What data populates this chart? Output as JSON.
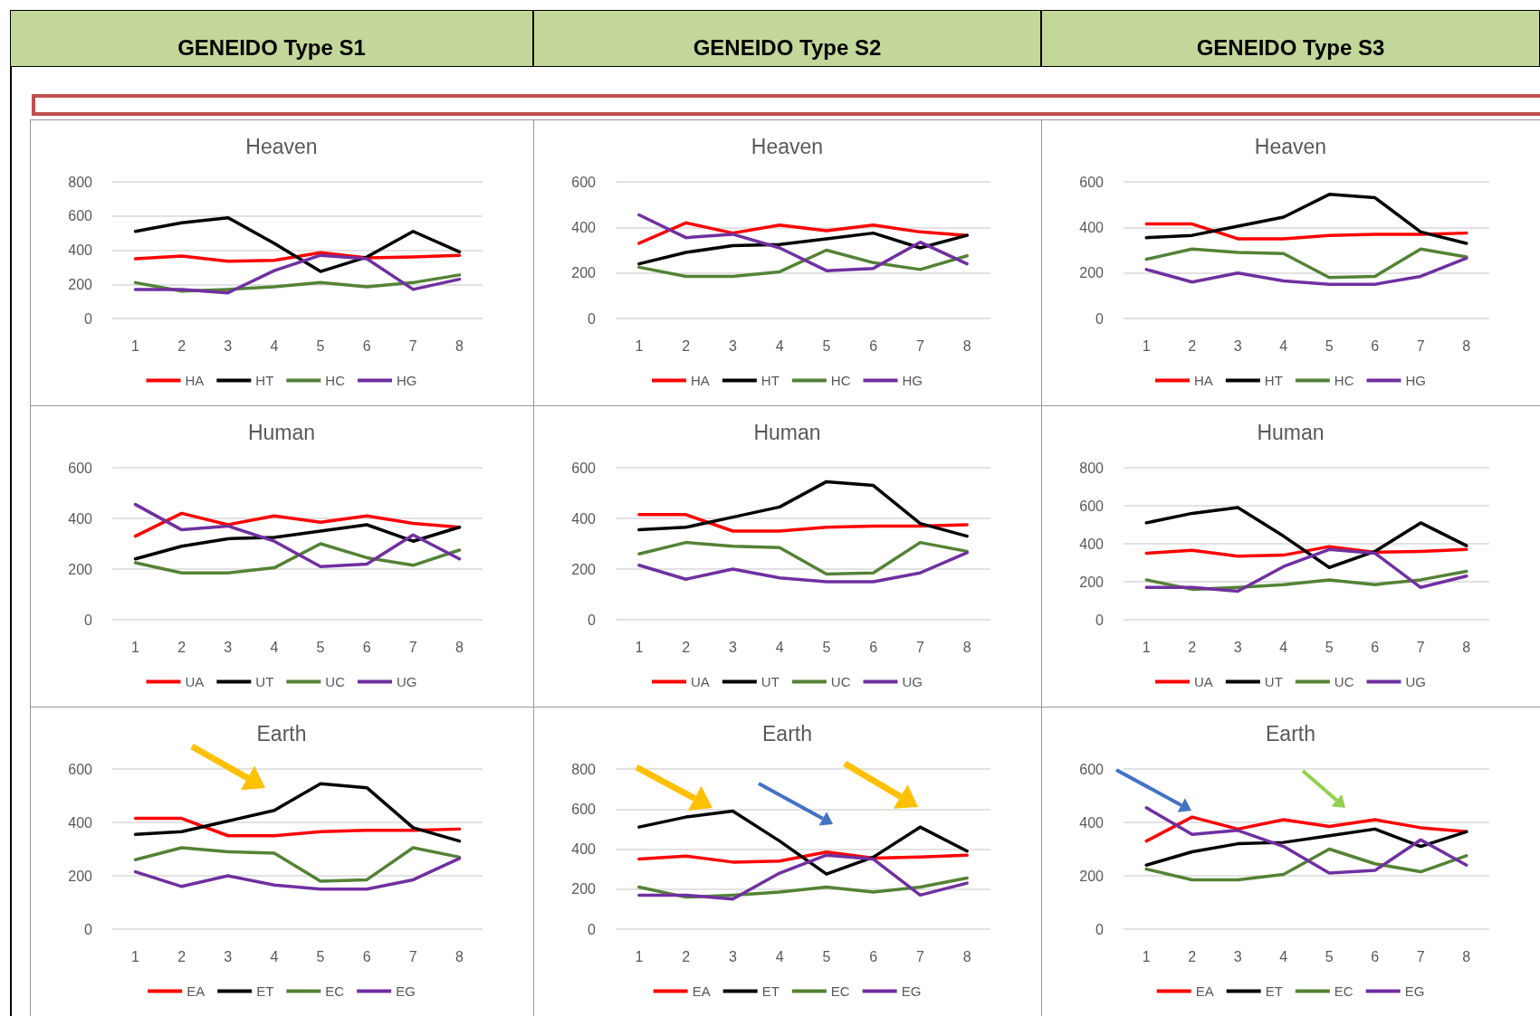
{
  "chart_data": [
    {
      "type": "line",
      "subtitle": "GENEIDO Type S1",
      "title": "Heaven",
      "categories": [
        "1",
        "2",
        "3",
        "4",
        "5",
        "6",
        "7",
        "8"
      ],
      "ylim": [
        0,
        800
      ],
      "yticks": [
        0,
        200,
        400,
        600,
        800
      ],
      "grid": "y",
      "legend": "bottom",
      "marker": "none",
      "line_style": "solid",
      "series": [
        {
          "name": "HA",
          "color": "#ff0000",
          "values": [
            350,
            365,
            335,
            340,
            385,
            355,
            360,
            370
          ]
        },
        {
          "name": "HT",
          "color": "#000000",
          "values": [
            510,
            560,
            590,
            440,
            275,
            360,
            510,
            390
          ]
        },
        {
          "name": "HC",
          "color": "#548235",
          "values": [
            210,
            160,
            170,
            185,
            210,
            185,
            210,
            255
          ]
        },
        {
          "name": "HG",
          "color": "#7030a0",
          "values": [
            170,
            170,
            150,
            280,
            370,
            350,
            170,
            230
          ]
        }
      ]
    },
    {
      "type": "line",
      "subtitle": "GENEIDO Type S2",
      "title": "Heaven",
      "categories": [
        "1",
        "2",
        "3",
        "4",
        "5",
        "6",
        "7",
        "8"
      ],
      "ylim": [
        0,
        600
      ],
      "yticks": [
        0,
        200,
        400,
        600
      ],
      "grid": "y",
      "legend": "bottom",
      "marker": "none",
      "line_style": "solid",
      "series": [
        {
          "name": "HA",
          "color": "#ff0000",
          "values": [
            330,
            420,
            375,
            410,
            385,
            410,
            380,
            365
          ]
        },
        {
          "name": "HT",
          "color": "#000000",
          "values": [
            240,
            290,
            320,
            325,
            350,
            375,
            310,
            365
          ]
        },
        {
          "name": "HC",
          "color": "#548235",
          "values": [
            225,
            185,
            185,
            205,
            300,
            245,
            215,
            275
          ]
        },
        {
          "name": "HG",
          "color": "#7030a0",
          "values": [
            455,
            355,
            370,
            310,
            210,
            220,
            335,
            240
          ]
        }
      ]
    },
    {
      "type": "line",
      "subtitle": "GENEIDO Type S3",
      "title": "Heaven",
      "categories": [
        "1",
        "2",
        "3",
        "4",
        "5",
        "6",
        "7",
        "8"
      ],
      "ylim": [
        0,
        600
      ],
      "yticks": [
        0,
        200,
        400,
        600
      ],
      "grid": "y",
      "legend": "bottom",
      "marker": "none",
      "line_style": "solid",
      "series": [
        {
          "name": "HA",
          "color": "#ff0000",
          "values": [
            415,
            415,
            350,
            350,
            365,
            370,
            370,
            375
          ]
        },
        {
          "name": "HT",
          "color": "#000000",
          "values": [
            355,
            365,
            405,
            445,
            545,
            530,
            380,
            330
          ]
        },
        {
          "name": "HC",
          "color": "#548235",
          "values": [
            260,
            305,
            290,
            285,
            180,
            185,
            305,
            270
          ]
        },
        {
          "name": "HG",
          "color": "#7030a0",
          "values": [
            215,
            160,
            200,
            165,
            150,
            150,
            185,
            265
          ]
        }
      ]
    },
    {
      "type": "line",
      "title": "Human",
      "categories": [
        "1",
        "2",
        "3",
        "4",
        "5",
        "6",
        "7",
        "8"
      ],
      "ylim": [
        0,
        600
      ],
      "yticks": [
        0,
        200,
        400,
        600
      ],
      "grid": "y",
      "legend": "bottom",
      "marker": "none",
      "line_style": "solid",
      "series": [
        {
          "name": "UA",
          "color": "#ff0000",
          "values": [
            330,
            420,
            375,
            410,
            385,
            410,
            380,
            365
          ]
        },
        {
          "name": "UT",
          "color": "#000000",
          "values": [
            240,
            290,
            320,
            325,
            350,
            375,
            310,
            365
          ]
        },
        {
          "name": "UC",
          "color": "#548235",
          "values": [
            225,
            185,
            185,
            205,
            300,
            245,
            215,
            275
          ]
        },
        {
          "name": "UG",
          "color": "#7030a0",
          "values": [
            455,
            355,
            370,
            310,
            210,
            220,
            335,
            240
          ]
        }
      ]
    },
    {
      "type": "line",
      "title": "Human",
      "categories": [
        "1",
        "2",
        "3",
        "4",
        "5",
        "6",
        "7",
        "8"
      ],
      "ylim": [
        0,
        600
      ],
      "yticks": [
        0,
        200,
        400,
        600
      ],
      "grid": "y",
      "legend": "bottom",
      "marker": "none",
      "line_style": "solid",
      "series": [
        {
          "name": "UA",
          "color": "#ff0000",
          "values": [
            415,
            415,
            350,
            350,
            365,
            370,
            370,
            375
          ]
        },
        {
          "name": "UT",
          "color": "#000000",
          "values": [
            355,
            365,
            405,
            445,
            545,
            530,
            380,
            330
          ]
        },
        {
          "name": "UC",
          "color": "#548235",
          "values": [
            260,
            305,
            290,
            285,
            180,
            185,
            305,
            270
          ]
        },
        {
          "name": "UG",
          "color": "#7030a0",
          "values": [
            215,
            160,
            200,
            165,
            150,
            150,
            185,
            265
          ]
        }
      ]
    },
    {
      "type": "line",
      "title": "Human",
      "categories": [
        "1",
        "2",
        "3",
        "4",
        "5",
        "6",
        "7",
        "8"
      ],
      "ylim": [
        0,
        800
      ],
      "yticks": [
        0,
        200,
        400,
        600,
        800
      ],
      "grid": "y",
      "legend": "bottom",
      "marker": "none",
      "line_style": "solid",
      "series": [
        {
          "name": "UA",
          "color": "#ff0000",
          "values": [
            350,
            365,
            335,
            340,
            385,
            355,
            360,
            370
          ]
        },
        {
          "name": "UT",
          "color": "#000000",
          "values": [
            510,
            560,
            590,
            440,
            275,
            360,
            510,
            390
          ]
        },
        {
          "name": "UC",
          "color": "#548235",
          "values": [
            210,
            160,
            170,
            185,
            210,
            185,
            210,
            255
          ]
        },
        {
          "name": "UG",
          "color": "#7030a0",
          "values": [
            170,
            170,
            150,
            280,
            370,
            350,
            170,
            230
          ]
        }
      ]
    },
    {
      "type": "line",
      "title": "Earth",
      "categories": [
        "1",
        "2",
        "3",
        "4",
        "5",
        "6",
        "7",
        "8"
      ],
      "ylim": [
        0,
        600
      ],
      "yticks": [
        0,
        200,
        400,
        600
      ],
      "grid": "y",
      "legend": "bottom",
      "marker": "none",
      "line_style": "solid",
      "series": [
        {
          "name": "EA",
          "color": "#ff0000",
          "values": [
            415,
            415,
            350,
            350,
            365,
            370,
            370,
            375
          ]
        },
        {
          "name": "ET",
          "color": "#000000",
          "values": [
            355,
            365,
            405,
            445,
            545,
            530,
            380,
            330
          ]
        },
        {
          "name": "EC",
          "color": "#548235",
          "values": [
            260,
            305,
            290,
            285,
            180,
            185,
            305,
            270
          ]
        },
        {
          "name": "EG",
          "color": "#7030a0",
          "values": [
            215,
            160,
            200,
            165,
            150,
            150,
            185,
            265
          ]
        }
      ]
    },
    {
      "type": "line",
      "title": "Earth",
      "categories": [
        "1",
        "2",
        "3",
        "4",
        "5",
        "6",
        "7",
        "8"
      ],
      "ylim": [
        0,
        800
      ],
      "yticks": [
        0,
        200,
        400,
        600,
        800
      ],
      "grid": "y",
      "legend": "bottom",
      "marker": "none",
      "line_style": "solid",
      "series": [
        {
          "name": "EA",
          "color": "#ff0000",
          "values": [
            350,
            365,
            335,
            340,
            385,
            355,
            360,
            370
          ]
        },
        {
          "name": "ET",
          "color": "#000000",
          "values": [
            510,
            560,
            590,
            440,
            275,
            360,
            510,
            390
          ]
        },
        {
          "name": "EC",
          "color": "#548235",
          "values": [
            210,
            160,
            170,
            185,
            210,
            185,
            210,
            255
          ]
        },
        {
          "name": "EG",
          "color": "#7030a0",
          "values": [
            170,
            170,
            150,
            280,
            370,
            350,
            170,
            230
          ]
        }
      ]
    },
    {
      "type": "line",
      "title": "Earth",
      "categories": [
        "1",
        "2",
        "3",
        "4",
        "5",
        "6",
        "7",
        "8"
      ],
      "ylim": [
        0,
        600
      ],
      "yticks": [
        0,
        200,
        400,
        600
      ],
      "grid": "y",
      "legend": "bottom",
      "marker": "none",
      "line_style": "solid",
      "series": [
        {
          "name": "EA",
          "color": "#ff0000",
          "values": [
            330,
            420,
            375,
            410,
            385,
            410,
            380,
            365
          ]
        },
        {
          "name": "ET",
          "color": "#000000",
          "values": [
            240,
            290,
            320,
            325,
            350,
            375,
            310,
            365
          ]
        },
        {
          "name": "EC",
          "color": "#548235",
          "values": [
            225,
            185,
            185,
            205,
            300,
            245,
            215,
            275
          ]
        },
        {
          "name": "EG",
          "color": "#7030a0",
          "values": [
            455,
            355,
            370,
            310,
            210,
            220,
            335,
            240
          ]
        }
      ]
    }
  ]
}
